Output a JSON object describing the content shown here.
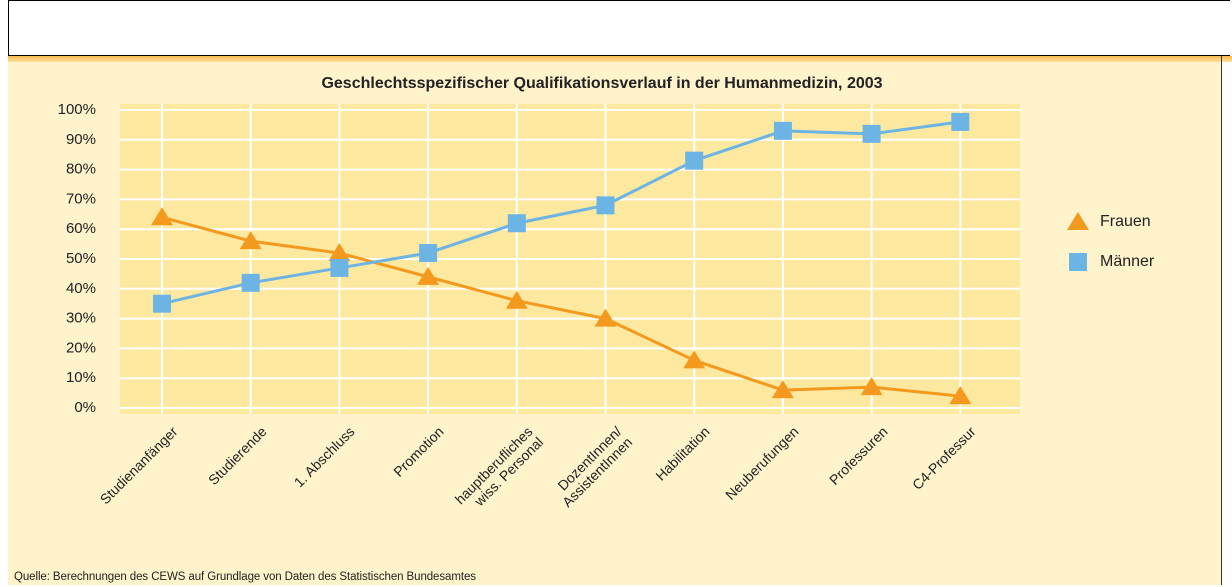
{
  "chart_data": {
    "type": "line",
    "title": "Geschlechtsspezifischer Qualifikationsverlauf in der Humanmedizin, 2003",
    "categories": [
      "Studienanfänger",
      "Studierende",
      "1. Abschluss",
      "Promotion",
      "hauptberufliches\nwiss. Personal",
      "DozentInnen/\nAssistentInnen",
      "Habilitation",
      "Neuberufungen",
      "Professuren",
      "C4-Professur"
    ],
    "series": [
      {
        "name": "Frauen",
        "color": "#f39a1e",
        "marker": "triangle",
        "values": [
          64,
          56,
          52,
          44,
          36,
          30,
          16,
          6,
          7,
          4
        ]
      },
      {
        "name": "Männer",
        "color": "#6cb4e4",
        "marker": "square",
        "values": [
          35,
          42,
          47,
          52,
          62,
          68,
          83,
          93,
          92,
          96
        ]
      }
    ],
    "ylim": [
      0,
      100
    ],
    "yticks": [
      {
        "value": 0,
        "label": "0%"
      },
      {
        "value": 10,
        "label": "10%"
      },
      {
        "value": 20,
        "label": "20%"
      },
      {
        "value": 30,
        "label": "30%"
      },
      {
        "value": 40,
        "label": "40%"
      },
      {
        "value": 50,
        "label": "50%"
      },
      {
        "value": 60,
        "label": "60%"
      },
      {
        "value": 70,
        "label": "70%"
      },
      {
        "value": 80,
        "label": "80%"
      },
      {
        "value": 90,
        "label": "90%"
      },
      {
        "value": 100,
        "label": "100%"
      }
    ],
    "grid": true,
    "legend": "right",
    "source": "Quelle: Berechnungen des CEWS auf Grundlage von Daten des Statistischen Bundesamtes"
  }
}
